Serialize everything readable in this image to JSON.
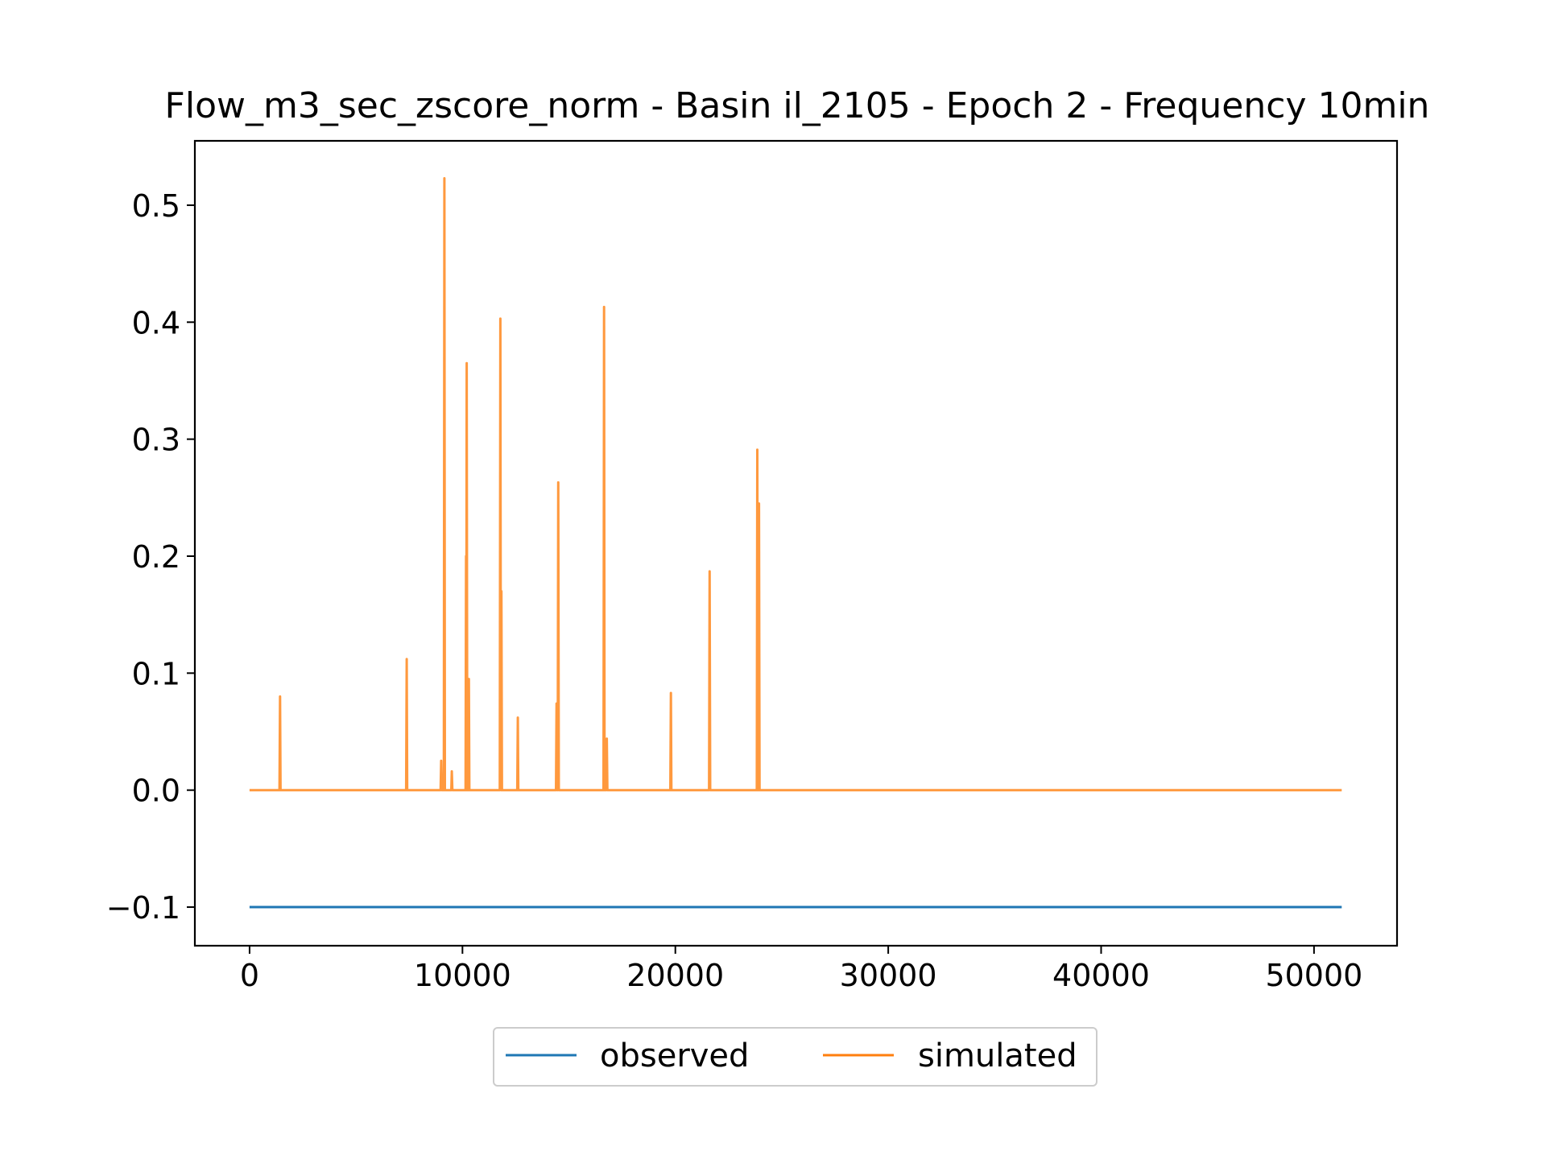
{
  "chart_data": {
    "type": "line",
    "title": "Flow_m3_sec_zscore_norm - Basin il_2105 - Epoch 2 - Frequency 10min",
    "xlabel": "",
    "ylabel": "",
    "xlim": [
      -2570,
      53900
    ],
    "ylim": [
      -0.133,
      0.555
    ],
    "x_ticks": [
      0,
      10000,
      20000,
      30000,
      40000,
      50000
    ],
    "x_tick_labels": [
      "0",
      "10000",
      "20000",
      "30000",
      "40000",
      "50000"
    ],
    "y_ticks": [
      -0.1,
      0.0,
      0.1,
      0.2,
      0.3,
      0.4,
      0.5
    ],
    "y_tick_labels": [
      "−0.1",
      "0.0",
      "0.1",
      "0.2",
      "0.3",
      "0.4",
      "0.5"
    ],
    "grid": false,
    "legend_position": "bottom-center, outside plot",
    "series": [
      {
        "name": "observed",
        "color": "#1f77b4",
        "x": [
          0,
          51300
        ],
        "y": [
          -0.1,
          -0.1
        ]
      },
      {
        "name": "simulated",
        "color": "#ff7f0e",
        "baseline": 0.0,
        "x_range": [
          0,
          51300
        ],
        "spikes": [
          {
            "x": 1430,
            "y": 0.08
          },
          {
            "x": 7380,
            "y": 0.112
          },
          {
            "x": 9000,
            "y": 0.025
          },
          {
            "x": 9150,
            "y": 0.523
          },
          {
            "x": 9500,
            "y": 0.016
          },
          {
            "x": 10170,
            "y": 0.2
          },
          {
            "x": 10200,
            "y": 0.365
          },
          {
            "x": 10300,
            "y": 0.095
          },
          {
            "x": 11780,
            "y": 0.403
          },
          {
            "x": 11830,
            "y": 0.17
          },
          {
            "x": 12600,
            "y": 0.062
          },
          {
            "x": 14420,
            "y": 0.074
          },
          {
            "x": 14500,
            "y": 0.263
          },
          {
            "x": 16650,
            "y": 0.413
          },
          {
            "x": 16780,
            "y": 0.044
          },
          {
            "x": 19790,
            "y": 0.083
          },
          {
            "x": 21610,
            "y": 0.187
          },
          {
            "x": 23850,
            "y": 0.291
          },
          {
            "x": 23930,
            "y": 0.245
          }
        ]
      }
    ]
  }
}
